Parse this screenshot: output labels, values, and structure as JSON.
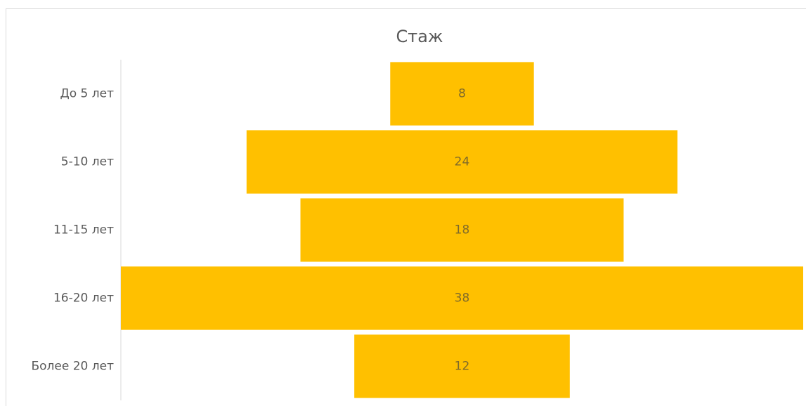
{
  "chart_data": {
    "type": "funnel",
    "title": "Стаж",
    "categories": [
      "До 5 лет",
      "5-10 лет",
      "11-15 лет",
      "16-20 лет",
      "Более 20 лет"
    ],
    "values": [
      8,
      24,
      18,
      38,
      12
    ],
    "color": "#ffc000"
  }
}
